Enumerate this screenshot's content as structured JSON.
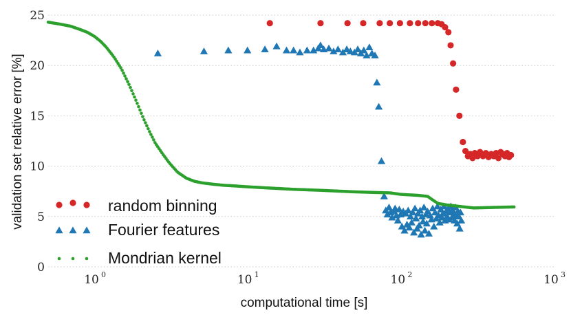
{
  "chart_data": {
    "type": "scatter",
    "title": "",
    "xlabel": "computational time [s]",
    "ylabel": "validation set relative error [%]",
    "xscale": "log",
    "xlim": [
      0.5,
      1000
    ],
    "ylim": [
      0,
      25
    ],
    "xticks": [
      {
        "base": "10",
        "exp": "0",
        "value": 1
      },
      {
        "base": "10",
        "exp": "1",
        "value": 10
      },
      {
        "base": "10",
        "exp": "2",
        "value": 100
      },
      {
        "base": "10",
        "exp": "3",
        "value": 1000
      }
    ],
    "yticks": [
      "0",
      "5",
      "10",
      "15",
      "20",
      "25"
    ],
    "grid": "horizontal dotted",
    "legend_position": "bottom-left",
    "series": [
      {
        "name": "random binning",
        "marker": "circle",
        "color": "#d62728",
        "points": [
          [
            14,
            24.2
          ],
          [
            30,
            24.2
          ],
          [
            45,
            24.2
          ],
          [
            57,
            24.2
          ],
          [
            73,
            24.2
          ],
          [
            85,
            24.2
          ],
          [
            99,
            24.2
          ],
          [
            115,
            24.2
          ],
          [
            130,
            24.2
          ],
          [
            145,
            24.2
          ],
          [
            160,
            24.2
          ],
          [
            175,
            24.2
          ],
          [
            185,
            24.1
          ],
          [
            195,
            23.8
          ],
          [
            205,
            23.3
          ],
          [
            212,
            22.0
          ],
          [
            220,
            20.2
          ],
          [
            230,
            17.6
          ],
          [
            242,
            15.0
          ],
          [
            255,
            12.4
          ],
          [
            265,
            11.5
          ],
          [
            275,
            11.0
          ],
          [
            285,
            11.2
          ],
          [
            295,
            10.8
          ],
          [
            305,
            11.3
          ],
          [
            318,
            11.0
          ],
          [
            330,
            11.4
          ],
          [
            345,
            11.0
          ],
          [
            360,
            11.3
          ],
          [
            375,
            10.9
          ],
          [
            390,
            11.2
          ],
          [
            405,
            11.0
          ],
          [
            420,
            11.3
          ],
          [
            435,
            10.8
          ],
          [
            450,
            11.4
          ],
          [
            465,
            11.2
          ],
          [
            480,
            11.0
          ],
          [
            495,
            11.3
          ],
          [
            510,
            10.9
          ],
          [
            525,
            11.1
          ]
        ]
      },
      {
        "name": "Fourier features",
        "marker": "triangle",
        "color": "#1f77b4",
        "points": [
          [
            2.6,
            21.2
          ],
          [
            5.2,
            21.4
          ],
          [
            7.5,
            21.5
          ],
          [
            10,
            21.5
          ],
          [
            13,
            21.6
          ],
          [
            15.5,
            21.9
          ],
          [
            18,
            21.5
          ],
          [
            20,
            21.5
          ],
          [
            22,
            21.3
          ],
          [
            24.5,
            21.5
          ],
          [
            27,
            21.5
          ],
          [
            29,
            21.7
          ],
          [
            30,
            22.0
          ],
          [
            31.5,
            21.6
          ],
          [
            34,
            21.7
          ],
          [
            36.5,
            21.4
          ],
          [
            39,
            21.6
          ],
          [
            42,
            21.3
          ],
          [
            44.5,
            21.6
          ],
          [
            47,
            21.4
          ],
          [
            50,
            21.3
          ],
          [
            52.5,
            21.6
          ],
          [
            55,
            21.2
          ],
          [
            57.5,
            21.5
          ],
          [
            60,
            21.0
          ],
          [
            62.5,
            21.8
          ],
          [
            65,
            21.2
          ],
          [
            68,
            21.0
          ],
          [
            70,
            18.3
          ],
          [
            72,
            15.9
          ],
          [
            75,
            10.5
          ],
          [
            78,
            7.0
          ],
          [
            80,
            5.6
          ],
          [
            82,
            5.2
          ],
          [
            84,
            5.9
          ],
          [
            86,
            5.4
          ],
          [
            88,
            4.9
          ],
          [
            90,
            5.5
          ],
          [
            92,
            5.8
          ],
          [
            94,
            5.1
          ],
          [
            96,
            4.6
          ],
          [
            98,
            5.7
          ],
          [
            100,
            5.2
          ],
          [
            102,
            4.0
          ],
          [
            104,
            5.5
          ],
          [
            106,
            3.6
          ],
          [
            108,
            5.3
          ],
          [
            110,
            4.2
          ],
          [
            112,
            5.6
          ],
          [
            114,
            3.9
          ],
          [
            116,
            5.0
          ],
          [
            118,
            4.4
          ],
          [
            120,
            5.4
          ],
          [
            122,
            3.4
          ],
          [
            124,
            5.8
          ],
          [
            126,
            4.8
          ],
          [
            128,
            3.8
          ],
          [
            130,
            5.3
          ],
          [
            132,
            4.1
          ],
          [
            134,
            5.6
          ],
          [
            136,
            3.2
          ],
          [
            138,
            5.0
          ],
          [
            140,
            4.5
          ],
          [
            142,
            5.9
          ],
          [
            144,
            3.6
          ],
          [
            146,
            5.2
          ],
          [
            148,
            4.3
          ],
          [
            150,
            5.5
          ],
          [
            153,
            3.3
          ],
          [
            156,
            5.1
          ],
          [
            159,
            4.7
          ],
          [
            162,
            5.8
          ],
          [
            165,
            4.0
          ],
          [
            168,
            5.4
          ],
          [
            171,
            4.8
          ],
          [
            174,
            6.0
          ],
          [
            177,
            5.1
          ],
          [
            180,
            4.4
          ],
          [
            183,
            5.7
          ],
          [
            186,
            4.9
          ],
          [
            189,
            5.3
          ],
          [
            192,
            6.0
          ],
          [
            195,
            4.6
          ],
          [
            198,
            5.5
          ],
          [
            201,
            5.0
          ],
          [
            204,
            5.8
          ],
          [
            207,
            4.7
          ],
          [
            210,
            5.4
          ],
          [
            213,
            6.0
          ],
          [
            216,
            4.9
          ],
          [
            219,
            5.6
          ],
          [
            222,
            5.2
          ],
          [
            225,
            4.6
          ],
          [
            228,
            5.9
          ],
          [
            231,
            5.1
          ],
          [
            234,
            4.3
          ],
          [
            237,
            5.5
          ],
          [
            240,
            5.0
          ],
          [
            243,
            3.8
          ],
          [
            246,
            5.4
          ],
          [
            249,
            4.6
          ]
        ]
      },
      {
        "name": "Mondrian kernel",
        "marker": "dot",
        "color": "#2ca02c",
        "curve": [
          [
            0.5,
            24.3
          ],
          [
            0.6,
            24.1
          ],
          [
            0.7,
            23.9
          ],
          [
            0.8,
            23.6
          ],
          [
            0.9,
            23.3
          ],
          [
            1.0,
            22.9
          ],
          [
            1.1,
            22.4
          ],
          [
            1.2,
            21.8
          ],
          [
            1.35,
            20.8
          ],
          [
            1.5,
            19.7
          ],
          [
            1.7,
            18.0
          ],
          [
            1.9,
            16.3
          ],
          [
            2.1,
            14.7
          ],
          [
            2.3,
            13.4
          ],
          [
            2.5,
            12.3
          ],
          [
            2.8,
            11.2
          ],
          [
            3.1,
            10.3
          ],
          [
            3.5,
            9.4
          ],
          [
            4.0,
            8.8
          ],
          [
            4.5,
            8.5
          ],
          [
            5.0,
            8.35
          ],
          [
            6.0,
            8.2
          ],
          [
            7.0,
            8.1
          ],
          [
            8.0,
            8.05
          ],
          [
            10,
            7.95
          ],
          [
            15,
            7.8
          ],
          [
            20,
            7.7
          ],
          [
            30,
            7.6
          ],
          [
            50,
            7.45
          ],
          [
            70,
            7.38
          ],
          [
            85,
            7.35
          ],
          [
            100,
            7.2
          ],
          [
            130,
            7.1
          ],
          [
            150,
            7.0
          ],
          [
            160,
            6.7
          ],
          [
            175,
            6.3
          ],
          [
            200,
            6.15
          ],
          [
            230,
            6.05
          ],
          [
            260,
            5.95
          ],
          [
            300,
            5.85
          ],
          [
            400,
            5.9
          ],
          [
            550,
            5.95
          ]
        ]
      }
    ]
  }
}
